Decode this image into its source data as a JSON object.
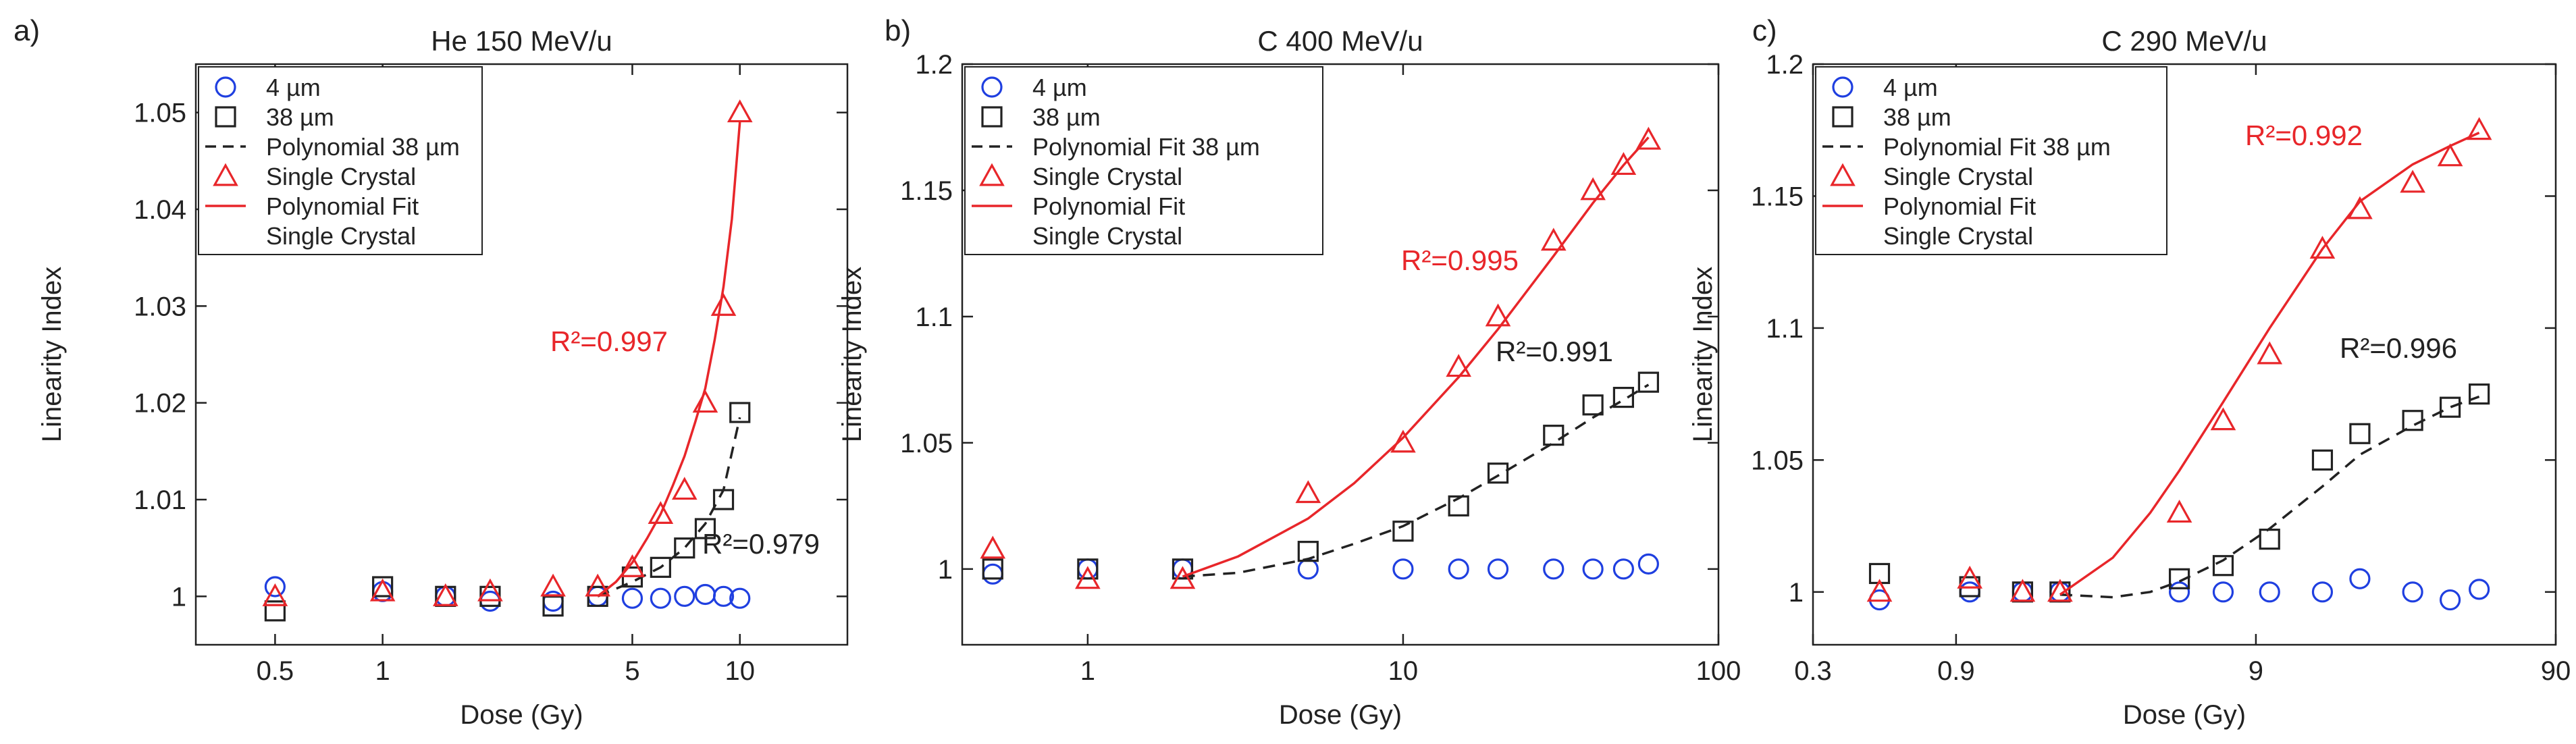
{
  "figure": {
    "panels": [
      {
        "panel_label": "a)",
        "title": "He 150 MeV/u",
        "xlabel": "Dose (Gy)",
        "ylabel": "Linearity Index",
        "legend_items": [
          {
            "marker": "circle",
            "color": "#1f3fe0",
            "label": "4 µm"
          },
          {
            "marker": "square",
            "color": "#222222",
            "label": "38 µm"
          },
          {
            "marker": "dash",
            "color": "#222222",
            "label": "Polynomial 38 µm"
          },
          {
            "marker": "triangle",
            "color": "#e8262a",
            "label": "Single Crystal"
          },
          {
            "marker": "solid",
            "color": "#e8262a",
            "label": "Polynomial Fit"
          },
          {
            "marker": "none",
            "color": "#222222",
            "label": "Single Crystal"
          }
        ],
        "annotations": [
          {
            "text": "R²=0.997",
            "color": "#e8262a"
          },
          {
            "text": "R²=0.979",
            "color": "#222222"
          }
        ]
      },
      {
        "panel_label": "b)",
        "title": "C 400 MeV/u",
        "xlabel": "Dose (Gy)",
        "ylabel": "Linearity Index",
        "legend_items": [
          {
            "marker": "circle",
            "color": "#1f3fe0",
            "label": "4 µm"
          },
          {
            "marker": "square",
            "color": "#222222",
            "label": "38 µm"
          },
          {
            "marker": "dash",
            "color": "#222222",
            "label": "Polynomial Fit 38 µm"
          },
          {
            "marker": "triangle",
            "color": "#e8262a",
            "label": "Single Crystal"
          },
          {
            "marker": "solid",
            "color": "#e8262a",
            "label": "Polynomial Fit"
          },
          {
            "marker": "none",
            "color": "#222222",
            "label": "Single Crystal"
          }
        ],
        "annotations": [
          {
            "text": "R²=0.995",
            "color": "#e8262a"
          },
          {
            "text": "R²=0.991",
            "color": "#222222"
          }
        ]
      },
      {
        "panel_label": "c)",
        "title": "C 290 MeV/u",
        "xlabel": "Dose (Gy)",
        "ylabel": "Linearity Index",
        "legend_items": [
          {
            "marker": "circle",
            "color": "#1f3fe0",
            "label": "4 µm"
          },
          {
            "marker": "square",
            "color": "#222222",
            "label": "38 µm"
          },
          {
            "marker": "dash",
            "color": "#222222",
            "label": "Polynomial Fit 38 µm"
          },
          {
            "marker": "triangle",
            "color": "#e8262a",
            "label": "Single Crystal"
          },
          {
            "marker": "solid",
            "color": "#e8262a",
            "label": "Polynomial Fit"
          },
          {
            "marker": "none",
            "color": "#222222",
            "label": "Single Crystal"
          }
        ],
        "annotations": [
          {
            "text": "R²=0.992",
            "color": "#e8262a"
          },
          {
            "text": "R²=0.996",
            "color": "#222222"
          }
        ]
      }
    ]
  },
  "chart_data": [
    {
      "type": "scatter",
      "title": "He 150 MeV/u",
      "xlabel": "Dose (Gy)",
      "ylabel": "Linearity Index",
      "xscale": "log",
      "xlim": [
        0.3,
        20
      ],
      "ylim": [
        0.995,
        1.055
      ],
      "xticks": [
        0.5,
        1,
        5,
        10
      ],
      "xtick_labels": [
        "0.5",
        "1",
        "5",
        "10"
      ],
      "yticks": [
        1,
        1.01,
        1.02,
        1.03,
        1.04,
        1.05
      ],
      "ytick_labels": [
        "1",
        "1.01",
        "1.02",
        "1.03",
        "1.04",
        "1.05"
      ],
      "grid": false,
      "legend_position": "top-left",
      "series": [
        {
          "name": "4 µm",
          "marker": "circle",
          "color": "#1f3fe0",
          "x": [
            0.5,
            1,
            1.5,
            2,
            3,
            4,
            5,
            6,
            7,
            8,
            9,
            10
          ],
          "y": [
            1.001,
            1.0005,
            1.0,
            0.9995,
            0.9995,
            1.0,
            0.9998,
            0.9998,
            1.0,
            1.0002,
            1.0,
            0.9998
          ]
        },
        {
          "name": "38 µm",
          "marker": "square",
          "color": "#222222",
          "x": [
            0.5,
            1,
            1.5,
            2,
            3,
            4,
            5,
            6,
            7,
            8,
            9,
            10
          ],
          "y": [
            0.9985,
            1.001,
            1.0,
            1.0,
            0.999,
            1.0,
            1.002,
            1.003,
            1.005,
            1.007,
            1.01,
            1.019
          ]
        },
        {
          "name": "Polynomial 38 µm",
          "line": "dash",
          "color": "#222222",
          "x": [
            4,
            5,
            6,
            7,
            8,
            9,
            10
          ],
          "y": [
            1.0,
            1.0015,
            1.003,
            1.005,
            1.0075,
            1.011,
            1.0185
          ]
        },
        {
          "name": "Single Crystal",
          "marker": "triangle",
          "color": "#e8262a",
          "x": [
            0.5,
            1,
            1.5,
            2,
            3,
            4,
            5,
            6,
            7,
            8,
            9,
            10
          ],
          "y": [
            1.0,
            1.0005,
            1.0,
            1.0005,
            1.001,
            1.001,
            1.003,
            1.0085,
            1.011,
            1.02,
            1.03,
            1.05
          ]
        },
        {
          "name": "Polynomial Fit Single Crystal",
          "line": "solid",
          "color": "#e8262a",
          "x": [
            4,
            4.5,
            5,
            5.5,
            6,
            6.5,
            7,
            7.5,
            8,
            8.5,
            9,
            9.5,
            10
          ],
          "y": [
            1.0,
            1.0015,
            1.0035,
            1.006,
            1.0085,
            1.0115,
            1.0145,
            1.018,
            1.0215,
            1.0265,
            1.032,
            1.039,
            1.049
          ]
        }
      ]
    },
    {
      "type": "scatter",
      "title": "C 400 MeV/u",
      "xlabel": "Dose (Gy)",
      "ylabel": "Linearity Index",
      "xscale": "log",
      "xlim": [
        0.4,
        100
      ],
      "ylim": [
        0.97,
        1.2
      ],
      "xticks": [
        1,
        10,
        100
      ],
      "xtick_labels": [
        "1",
        "10",
        "100"
      ],
      "yticks": [
        1,
        1.05,
        1.1,
        1.15,
        1.2
      ],
      "ytick_labels": [
        "1",
        "1.05",
        "1.1",
        "1.15",
        "1.2"
      ],
      "grid": false,
      "legend_position": "top-left",
      "series": [
        {
          "name": "4 µm",
          "marker": "circle",
          "color": "#1f3fe0",
          "x": [
            0.5,
            1,
            2,
            5,
            10,
            15,
            20,
            30,
            40,
            50,
            60
          ],
          "y": [
            0.998,
            1.0,
            1.0,
            1.0,
            1.0,
            1.0,
            1.0,
            1.0,
            1.0,
            1.0,
            1.002
          ]
        },
        {
          "name": "38 µm",
          "marker": "square",
          "color": "#222222",
          "x": [
            0.5,
            1,
            2,
            5,
            10,
            15,
            20,
            30,
            40,
            50,
            60
          ],
          "y": [
            1.0,
            1.0,
            1.0,
            1.007,
            1.015,
            1.025,
            1.038,
            1.053,
            1.065,
            1.068,
            1.074
          ]
        },
        {
          "name": "Polynomial Fit 38 µm",
          "line": "dash",
          "color": "#222222",
          "x": [
            2,
            3,
            5,
            7,
            10,
            15,
            20,
            30,
            40,
            50,
            60
          ],
          "y": [
            0.997,
            0.9985,
            1.004,
            1.01,
            1.017,
            1.028,
            1.037,
            1.05,
            1.06,
            1.067,
            1.073
          ]
        },
        {
          "name": "Single Crystal",
          "marker": "triangle",
          "color": "#e8262a",
          "x": [
            0.5,
            1,
            2,
            5,
            10,
            15,
            20,
            30,
            40,
            50,
            60
          ],
          "y": [
            1.008,
            0.996,
            0.996,
            1.03,
            1.05,
            1.08,
            1.1,
            1.13,
            1.15,
            1.16,
            1.17
          ]
        },
        {
          "name": "Polynomial Fit Single Crystal",
          "line": "solid",
          "color": "#e8262a",
          "x": [
            2,
            3,
            5,
            7,
            10,
            15,
            20,
            30,
            40,
            50,
            60
          ],
          "y": [
            0.997,
            1.005,
            1.02,
            1.034,
            1.052,
            1.076,
            1.095,
            1.124,
            1.145,
            1.16,
            1.171
          ]
        }
      ]
    },
    {
      "type": "scatter",
      "title": "C 290 MeV/u",
      "xlabel": "Dose (Gy)",
      "ylabel": "Linearity Index",
      "xscale": "log",
      "xlim": [
        0.3,
        90
      ],
      "ylim": [
        0.98,
        1.2
      ],
      "xticks": [
        0.3,
        0.9,
        9,
        90
      ],
      "xtick_labels": [
        "0.3",
        "0.9",
        "9",
        "90"
      ],
      "yticks": [
        1,
        1.05,
        1.1,
        1.15,
        1.2
      ],
      "ytick_labels": [
        "1",
        "1.05",
        "1.1",
        "1.15",
        "1.2"
      ],
      "grid": false,
      "legend_position": "top-left",
      "series": [
        {
          "name": "4 µm",
          "marker": "circle",
          "color": "#1f3fe0",
          "x": [
            0.5,
            1,
            1.5,
            2,
            5,
            7,
            10,
            15,
            20,
            30,
            40,
            50
          ],
          "y": [
            0.997,
            1.0,
            1.0,
            1.0,
            1.0,
            1.0,
            1.0,
            1.0,
            1.005,
            1.0,
            0.997,
            1.001
          ]
        },
        {
          "name": "38 µm",
          "marker": "square",
          "color": "#222222",
          "x": [
            0.5,
            1,
            1.5,
            2,
            5,
            7,
            10,
            15,
            20,
            30,
            40,
            50
          ],
          "y": [
            1.007,
            1.002,
            1.0,
            1.0,
            1.005,
            1.01,
            1.02,
            1.05,
            1.06,
            1.065,
            1.07,
            1.075
          ]
        },
        {
          "name": "Polynomial Fit 38 µm",
          "line": "dash",
          "color": "#222222",
          "x": [
            2,
            3,
            4,
            5,
            7,
            10,
            15,
            20,
            30,
            40,
            50
          ],
          "y": [
            0.999,
            0.998,
            1.0,
            1.004,
            1.012,
            1.024,
            1.04,
            1.052,
            1.063,
            1.07,
            1.074
          ]
        },
        {
          "name": "Single Crystal",
          "marker": "triangle",
          "color": "#e8262a",
          "x": [
            0.5,
            1,
            1.5,
            2,
            5,
            7,
            10,
            15,
            20,
            30,
            40,
            50
          ],
          "y": [
            1.0,
            1.005,
            1.0,
            1.0,
            1.03,
            1.065,
            1.09,
            1.13,
            1.145,
            1.155,
            1.165,
            1.175
          ]
        },
        {
          "name": "Polynomial Fit Single Crystal",
          "line": "solid",
          "color": "#e8262a",
          "x": [
            2,
            3,
            4,
            5,
            7,
            10,
            15,
            20,
            30,
            40,
            50
          ],
          "y": [
            0.999,
            1.013,
            1.03,
            1.046,
            1.072,
            1.1,
            1.13,
            1.148,
            1.162,
            1.169,
            1.174
          ]
        }
      ]
    }
  ]
}
